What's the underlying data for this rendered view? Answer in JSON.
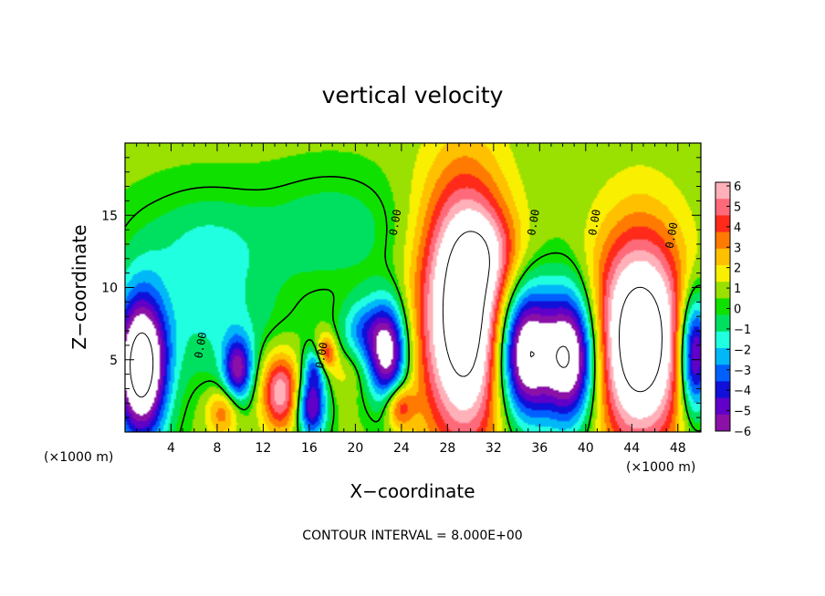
{
  "chart_data": {
    "type": "heatmap",
    "title": "vertical velocity",
    "xlabel": "X−coordinate",
    "ylabel": "Z−coordinate",
    "x_unit_left": "(×1000 m)",
    "x_unit_right": "(×1000 m)",
    "footer": "CONTOUR INTERVAL = 8.000E+00",
    "xlim": [
      0,
      50
    ],
    "ylim": [
      0,
      20
    ],
    "x_ticks": [
      4,
      8,
      12,
      16,
      20,
      24,
      28,
      32,
      36,
      40,
      44,
      48
    ],
    "x_tick_labels": [
      "4",
      "8",
      "12",
      "16",
      "20",
      "24",
      "28",
      "32",
      "36",
      "40",
      "44",
      "48"
    ],
    "y_ticks": [
      5,
      10,
      15
    ],
    "y_tick_labels": [
      "5",
      "10",
      "15"
    ],
    "colorbar": {
      "min": -6,
      "max": 6,
      "labels": [
        "6",
        "5",
        "4",
        "3",
        "2",
        "1",
        "0",
        "−1",
        "−2",
        "−3",
        "−4",
        "−5",
        "−6"
      ],
      "colors": [
        "#ffb0b8",
        "#ff6a7a",
        "#ff2a1a",
        "#ff7a00",
        "#ffc000",
        "#f8f000",
        "#9ae000",
        "#10e000",
        "#00e060",
        "#20ffe0",
        "#00b8f8",
        "#0060ff",
        "#1010d8",
        "#6000c8",
        "#8a10a8"
      ]
    },
    "contour_labels": [
      {
        "text": "0.00",
        "x": 23.5,
        "z": 14.5
      },
      {
        "text": "0.00",
        "x": 35.5,
        "z": 14.5
      },
      {
        "text": "0.00",
        "x": 40.8,
        "z": 14.5
      },
      {
        "text": "0.00",
        "x": 47.5,
        "z": 13.6
      },
      {
        "text": "0.00",
        "x": 6.6,
        "z": 6.0
      },
      {
        "text": "0.00",
        "x": 17.1,
        "z": 5.3
      }
    ],
    "updrafts": [
      {
        "x": 29.5,
        "z": 8.2,
        "sx": 2.7,
        "sz": 6.4,
        "amp": 9.5
      },
      {
        "x": 44.7,
        "z": 6.4,
        "sx": 2.9,
        "sz": 5.2,
        "amp": 9.5
      },
      {
        "x": 13.5,
        "z": 2.8,
        "sx": 1.2,
        "sz": 1.9,
        "amp": 5.5
      },
      {
        "x": 8.5,
        "z": 1.4,
        "sx": 1.0,
        "sz": 1.2,
        "amp": 3.0
      },
      {
        "x": 17.4,
        "z": 5.4,
        "sx": 0.6,
        "sz": 0.9,
        "amp": 4.5
      },
      {
        "x": 23.8,
        "z": 1.8,
        "sx": 0.9,
        "sz": 1.1,
        "amp": 4.0
      },
      {
        "x": 31.5,
        "z": 12.5,
        "sx": 2.0,
        "sz": 2.0,
        "amp": 2.0
      },
      {
        "x": 19.0,
        "z": 4.2,
        "sx": 1.2,
        "sz": 1.2,
        "amp": 1.0
      }
    ],
    "downdrafts": [
      {
        "x": 1.4,
        "z": 4.5,
        "sx": 1.6,
        "sz": 3.6,
        "amp": 10.0
      },
      {
        "x": 22.8,
        "z": 5.5,
        "sx": 1.2,
        "sz": 2.5,
        "amp": 7.5
      },
      {
        "x": 34.6,
        "z": 5.5,
        "sx": 1.7,
        "sz": 3.3,
        "amp": 9.0
      },
      {
        "x": 38.7,
        "z": 5.2,
        "sx": 1.7,
        "sz": 3.3,
        "amp": 9.0
      },
      {
        "x": 49.4,
        "z": 5.4,
        "sx": 1.0,
        "sz": 3.0,
        "amp": 8.0
      },
      {
        "x": 9.8,
        "z": 4.3,
        "sx": 0.9,
        "sz": 1.6,
        "amp": 5.5
      },
      {
        "x": 16.2,
        "z": 1.8,
        "sx": 0.9,
        "sz": 1.6,
        "amp": 6.0
      },
      {
        "x": 16.6,
        "z": 4.6,
        "sx": 0.7,
        "sz": 1.0,
        "amp": 3.5
      },
      {
        "x": 20.5,
        "z": 7.0,
        "sx": 1.3,
        "sz": 1.6,
        "amp": 3.0
      },
      {
        "x": 7.0,
        "z": 13.0,
        "sx": 4.0,
        "sz": 2.5,
        "amp": 1.8
      },
      {
        "x": 18.0,
        "z": 14.0,
        "sx": 4.0,
        "sz": 2.5,
        "amp": 1.6
      },
      {
        "x": 8.0,
        "z": 7.5,
        "sx": 4.0,
        "sz": 3.0,
        "amp": 1.8
      }
    ]
  }
}
